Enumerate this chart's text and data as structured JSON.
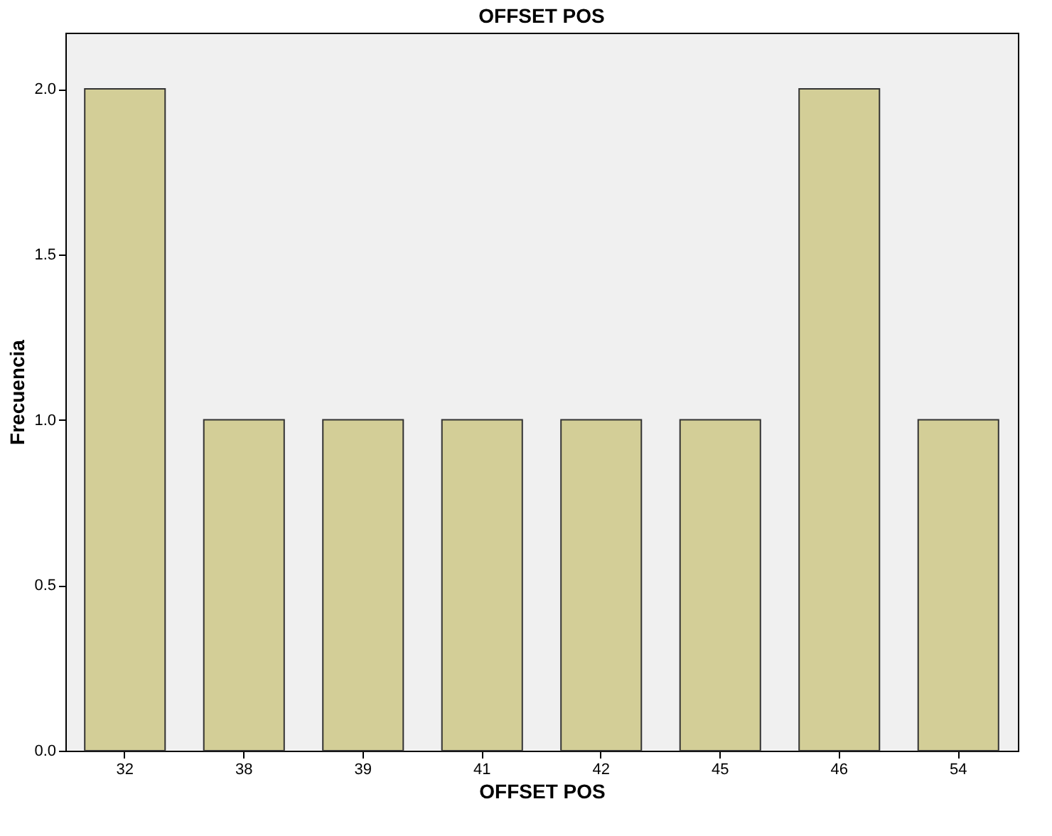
{
  "chart_data": {
    "type": "bar",
    "title": "OFFSET POS",
    "xlabel": "OFFSET POS",
    "ylabel": "Frecuencia",
    "categories": [
      "32",
      "38",
      "39",
      "41",
      "42",
      "45",
      "46",
      "54"
    ],
    "values": [
      2,
      1,
      1,
      1,
      1,
      1,
      2,
      1
    ],
    "color": "#d3ce97",
    "ylim": [
      0,
      2.17
    ],
    "yticks": [
      {
        "value": 0,
        "label": "0.0"
      },
      {
        "value": 0.5,
        "label": "0.5"
      },
      {
        "value": 1,
        "label": "1.0"
      },
      {
        "value": 1.5,
        "label": "1.5"
      },
      {
        "value": 2,
        "label": "2.0"
      }
    ],
    "grid": false
  }
}
